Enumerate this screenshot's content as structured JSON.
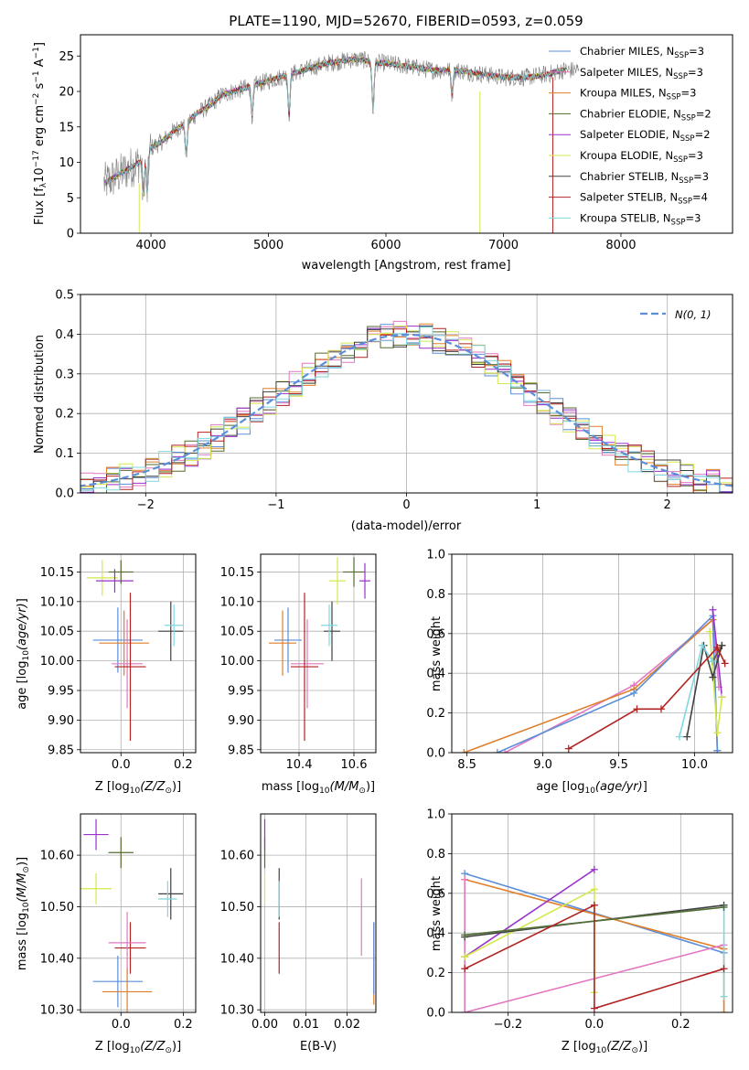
{
  "colors": {
    "grid": "#b0b0b0",
    "frame": "#000000",
    "normal_curve": "#5b8fd9",
    "spectrum_obs": "#808080"
  },
  "chart_data": [
    {
      "id": "spectrum",
      "type": "line",
      "title": "PLATE=1190, MJD=52670, FIBERID=0593, z=0.059",
      "xlabel": "wavelength [Angstrom, rest frame]",
      "ylabel": "Flux [f",
      "xlim": [
        3400,
        8950
      ],
      "ylim": [
        0,
        28
      ],
      "xticks": [
        4000,
        5000,
        6000,
        7000,
        8000
      ],
      "yticks": [
        0,
        5,
        10,
        15,
        20,
        25
      ],
      "grid": false,
      "legend_position": "right",
      "series": [
        {
          "name": "Chabrier MILES, N",
          "sub": "SSP",
          "tail": "=3",
          "color": "#5b8fd9"
        },
        {
          "name": "Salpeter MILES, N",
          "sub": "SSP",
          "tail": "=3",
          "color": "#e377c2"
        },
        {
          "name": "Kroupa MILES, N",
          "sub": "SSP",
          "tail": "=3",
          "color": "#e07f2a"
        },
        {
          "name": "Chabrier ELODIE, N",
          "sub": "SSP",
          "tail": "=2",
          "color": "#556b2f"
        },
        {
          "name": "Salpeter ELODIE, N",
          "sub": "SSP",
          "tail": "=2",
          "color": "#9932cc"
        },
        {
          "name": "Kroupa ELODIE, N",
          "sub": "SSP",
          "tail": "=3",
          "color": "#d4e84a"
        },
        {
          "name": "Chabrier STELIB, N",
          "sub": "SSP",
          "tail": "=3",
          "color": "#404040"
        },
        {
          "name": "Salpeter STELIB, N",
          "sub": "SSP",
          "tail": "=4",
          "color": "#b22222"
        },
        {
          "name": "Kroupa STELIB, N",
          "sub": "SSP",
          "tail": "=3",
          "color": "#7fd8e0"
        }
      ],
      "continuum": {
        "x": [
          3600,
          3700,
          3800,
          3900,
          4000,
          4100,
          4200,
          4300,
          4400,
          4500,
          4600,
          4700,
          4800,
          4900,
          5000,
          5100,
          5200,
          5300,
          5400,
          5500,
          5600,
          5700,
          5800,
          5900,
          6000,
          6200,
          6400,
          6600,
          6800,
          7000,
          7200,
          7400,
          7500
        ],
        "y": [
          7,
          8,
          9,
          10,
          12,
          13,
          14.5,
          15.5,
          17,
          18,
          19.5,
          20,
          20.5,
          21,
          21.5,
          22,
          22.5,
          23,
          23.5,
          24,
          24.2,
          24.5,
          24.5,
          24,
          24,
          23.5,
          23,
          23,
          22.5,
          22,
          22,
          22.5,
          23
        ]
      }
    },
    {
      "id": "residuals",
      "type": "line",
      "xlabel": "(data-model)/error",
      "ylabel": "Normed distribution",
      "xlim": [
        -2.5,
        2.5
      ],
      "ylim": [
        0,
        0.5
      ],
      "xticks": [
        -2,
        -1,
        0,
        1,
        2
      ],
      "yticks": [
        0.0,
        0.1,
        0.2,
        0.3,
        0.4,
        0.5
      ],
      "grid": true,
      "legend_position": "top-right",
      "legend": "N(0, 1)",
      "bin_width": 0.1
    },
    {
      "id": "age_vs_Z",
      "type": "scatter",
      "xlabel": "Z [log",
      "ylabel": "age",
      "xlim": [
        -0.13,
        0.24
      ],
      "ylim": [
        9.845,
        10.18
      ],
      "xticks": [
        0.0,
        0.2
      ],
      "yticks": [
        9.85,
        9.9,
        9.95,
        10.0,
        10.05,
        10.1,
        10.15
      ],
      "grid": true,
      "points": [
        {
          "x": -0.06,
          "xe": 0.05,
          "y": 10.14,
          "ye": 0.03,
          "color": "#d4e84a"
        },
        {
          "x": -0.02,
          "xe": 0.06,
          "y": 10.135,
          "ye": 0.02,
          "color": "#9932cc"
        },
        {
          "x": 0.0,
          "xe": 0.04,
          "y": 10.15,
          "ye": 0.02,
          "color": "#556b2f"
        },
        {
          "x": -0.01,
          "xe": 0.08,
          "y": 10.035,
          "ye": 0.055,
          "color": "#5b8fd9"
        },
        {
          "x": 0.01,
          "xe": 0.08,
          "y": 10.03,
          "ye": 0.055,
          "color": "#e07f2a"
        },
        {
          "x": 0.02,
          "xe": 0.05,
          "y": 9.995,
          "ye": 0.075,
          "color": "#e377c2"
        },
        {
          "x": 0.03,
          "xe": 0.05,
          "y": 9.99,
          "ye": 0.125,
          "color": "#b22222"
        },
        {
          "x": 0.16,
          "xe": 0.04,
          "y": 10.05,
          "ye": 0.05,
          "color": "#404040"
        },
        {
          "x": 0.17,
          "xe": 0.03,
          "y": 10.06,
          "ye": 0.035,
          "color": "#7fd8e0"
        }
      ]
    },
    {
      "id": "age_vs_mass",
      "type": "scatter",
      "xlabel": "mass [log",
      "xlim": [
        10.26,
        10.68
      ],
      "ylim": [
        9.845,
        10.18
      ],
      "xticks": [
        10.4,
        10.6
      ],
      "yticks": [
        9.85,
        9.9,
        9.95,
        10.0,
        10.05,
        10.1,
        10.15
      ],
      "grid": true,
      "points": [
        {
          "x": 10.54,
          "xe": 0.03,
          "y": 10.135,
          "ye": 0.04,
          "color": "#d4e84a"
        },
        {
          "x": 10.6,
          "xe": 0.04,
          "y": 10.15,
          "ye": 0.025,
          "color": "#556b2f"
        },
        {
          "x": 10.64,
          "xe": 0.02,
          "y": 10.135,
          "ye": 0.03,
          "color": "#9932cc"
        },
        {
          "x": 10.36,
          "xe": 0.05,
          "y": 10.035,
          "ye": 0.055,
          "color": "#5b8fd9"
        },
        {
          "x": 10.34,
          "xe": 0.05,
          "y": 10.03,
          "ye": 0.055,
          "color": "#e07f2a"
        },
        {
          "x": 10.43,
          "xe": 0.06,
          "y": 9.995,
          "ye": 0.075,
          "color": "#e377c2"
        },
        {
          "x": 10.42,
          "xe": 0.05,
          "y": 9.99,
          "ye": 0.125,
          "color": "#b22222"
        },
        {
          "x": 10.52,
          "xe": 0.03,
          "y": 10.05,
          "ye": 0.05,
          "color": "#404040"
        },
        {
          "x": 10.51,
          "xe": 0.03,
          "y": 10.06,
          "ye": 0.035,
          "color": "#7fd8e0"
        }
      ]
    },
    {
      "id": "mass_weight_vs_age",
      "type": "line",
      "xlabel": "age",
      "ylabel": "mass weight",
      "xlim": [
        8.4,
        10.25
      ],
      "ylim": [
        0,
        1.0
      ],
      "xticks": [
        8.5,
        9.0,
        9.5,
        10.0
      ],
      "yticks": [
        0.0,
        0.2,
        0.4,
        0.6,
        0.8,
        1.0
      ],
      "grid": true,
      "series": [
        {
          "color": "#e377c2",
          "x": [
            8.75,
            9.6,
            10.12,
            10.16
          ],
          "y": [
            0.0,
            0.34,
            0.67,
            0.33
          ]
        },
        {
          "color": "#e07f2a",
          "x": [
            8.48,
            9.6,
            10.12,
            10.15
          ],
          "y": [
            0.0,
            0.32,
            0.67,
            0.01
          ]
        },
        {
          "color": "#5b8fd9",
          "x": [
            8.7,
            9.6,
            10.12,
            10.15
          ],
          "y": [
            0.0,
            0.3,
            0.69,
            0.01
          ]
        },
        {
          "color": "#9932cc",
          "x": [
            10.12,
            10.18
          ],
          "y": [
            0.72,
            0.28
          ]
        },
        {
          "color": "#d4e84a",
          "x": [
            10.1,
            10.15,
            10.18
          ],
          "y": [
            0.61,
            0.1,
            0.28
          ]
        },
        {
          "color": "#556b2f",
          "x": [
            10.12,
            10.18
          ],
          "y": [
            0.46,
            0.54
          ]
        },
        {
          "color": "#404040",
          "x": [
            9.95,
            10.06,
            10.12,
            10.18
          ],
          "y": [
            0.08,
            0.54,
            0.38,
            0.54
          ]
        },
        {
          "color": "#7fd8e0",
          "x": [
            9.9,
            10.05,
            10.12
          ],
          "y": [
            0.08,
            0.54,
            0.46
          ]
        },
        {
          "color": "#b22222",
          "x": [
            9.17,
            9.62,
            9.78,
            10.15,
            10.2
          ],
          "y": [
            0.02,
            0.22,
            0.22,
            0.53,
            0.45
          ]
        }
      ]
    },
    {
      "id": "mass_vs_Z",
      "type": "scatter",
      "xlabel": "Z [log",
      "ylabel": "mass [log",
      "xlim": [
        -0.13,
        0.24
      ],
      "ylim": [
        10.295,
        10.68
      ],
      "xticks": [
        0.0,
        0.2
      ],
      "yticks": [
        10.3,
        10.4,
        10.5,
        10.6
      ],
      "grid": true,
      "points": [
        {
          "x": -0.08,
          "xe": 0.04,
          "y": 10.64,
          "ye": 0.03,
          "color": "#9932cc"
        },
        {
          "x": 0.0,
          "xe": 0.04,
          "y": 10.605,
          "ye": 0.03,
          "color": "#556b2f"
        },
        {
          "x": -0.08,
          "xe": 0.05,
          "y": 10.535,
          "ye": 0.03,
          "color": "#d4e84a"
        },
        {
          "x": 0.16,
          "xe": 0.04,
          "y": 10.525,
          "ye": 0.05,
          "color": "#404040"
        },
        {
          "x": 0.15,
          "xe": 0.03,
          "y": 10.515,
          "ye": 0.035,
          "color": "#7fd8e0"
        },
        {
          "x": 0.03,
          "xe": 0.05,
          "y": 10.42,
          "ye": 0.05,
          "color": "#b22222"
        },
        {
          "x": 0.02,
          "xe": 0.06,
          "y": 10.43,
          "ye": 0.06,
          "color": "#e377c2"
        },
        {
          "x": -0.01,
          "xe": 0.08,
          "y": 10.355,
          "ye": 0.05,
          "color": "#5b8fd9"
        },
        {
          "x": 0.02,
          "xe": 0.08,
          "y": 10.335,
          "ye": 0.045,
          "color": "#e07f2a"
        }
      ]
    },
    {
      "id": "mass_vs_ebv",
      "type": "scatter",
      "xlabel": "E(B-V)",
      "xlim": [
        -0.001,
        0.027
      ],
      "ylim": [
        10.295,
        10.68
      ],
      "xticks": [
        0.0,
        0.01,
        0.02
      ],
      "yticks": [
        10.3,
        10.4,
        10.5,
        10.6
      ],
      "grid": true,
      "points": [
        {
          "x": 0.0,
          "y": 10.64,
          "ye": 0.03,
          "color": "#9932cc"
        },
        {
          "x": 0.0,
          "y": 10.535,
          "ye": 0.03,
          "color": "#d4e84a"
        },
        {
          "x": 0.0,
          "y": 10.605,
          "ye": 0.03,
          "color": "#556b2f"
        },
        {
          "x": 0.0035,
          "y": 10.525,
          "ye": 0.05,
          "color": "#404040"
        },
        {
          "x": 0.0035,
          "y": 10.515,
          "ye": 0.035,
          "color": "#7fd8e0"
        },
        {
          "x": 0.0035,
          "y": 10.42,
          "ye": 0.05,
          "color": "#b22222"
        },
        {
          "x": 0.0235,
          "y": 10.48,
          "ye": 0.075,
          "color": "#e377c2"
        },
        {
          "x": 0.0265,
          "y": 10.39,
          "ye": 0.08,
          "color": "#e07f2a"
        },
        {
          "x": 0.0265,
          "y": 10.4,
          "ye": 0.07,
          "color": "#5b8fd9"
        }
      ]
    },
    {
      "id": "mass_weight_vs_Z",
      "type": "line",
      "xlabel": "Z [log",
      "ylabel": "mass weight",
      "xlim": [
        -0.33,
        0.32
      ],
      "ylim": [
        0,
        1.0
      ],
      "xticks": [
        -0.2,
        0.0,
        0.2
      ],
      "yticks": [
        0.0,
        0.2,
        0.4,
        0.6,
        0.8,
        1.0
      ],
      "grid": true,
      "series": [
        {
          "color": "#5b8fd9",
          "x": [
            -0.3,
            0.3
          ],
          "y": [
            0.7,
            0.3
          ]
        },
        {
          "color": "#e07f2a",
          "x": [
            -0.3,
            0.3,
            0.3
          ],
          "y": [
            0.67,
            0.32,
            0.0
          ]
        },
        {
          "color": "#e377c2",
          "x": [
            -0.3,
            -0.3,
            0.3
          ],
          "y": [
            0.67,
            0.0,
            0.34
          ]
        },
        {
          "color": "#9932cc",
          "x": [
            -0.3,
            0.0
          ],
          "y": [
            0.28,
            0.72
          ]
        },
        {
          "color": "#d4e84a",
          "x": [
            -0.3,
            0.0,
            0.0
          ],
          "y": [
            0.28,
            0.62,
            0.1
          ]
        },
        {
          "color": "#404040",
          "x": [
            -0.3,
            0.3
          ],
          "y": [
            0.38,
            0.54
          ]
        },
        {
          "color": "#7fd8e0",
          "x": [
            -0.3,
            0.3,
            0.3
          ],
          "y": [
            0.39,
            0.53,
            0.08
          ]
        },
        {
          "color": "#556b2f",
          "x": [
            -0.3,
            0.3
          ],
          "y": [
            0.39,
            0.53
          ]
        },
        {
          "color": "#b22222",
          "x": [
            -0.3,
            0.0,
            0.0,
            0.3
          ],
          "y": [
            0.22,
            0.54,
            0.02,
            0.22
          ]
        }
      ]
    }
  ]
}
